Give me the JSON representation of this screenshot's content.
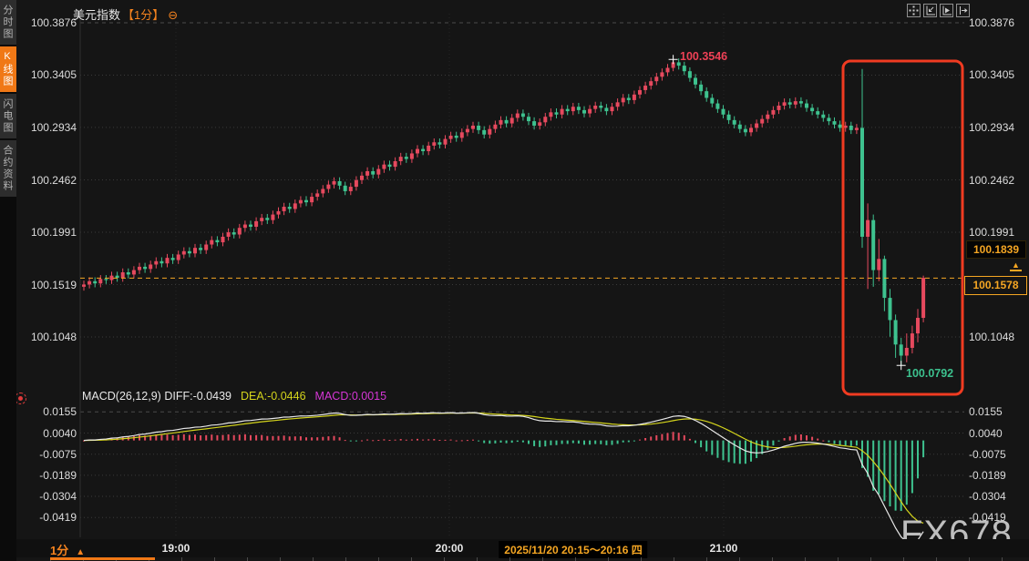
{
  "window": {
    "title": "美元指数",
    "period_tag": "【1分】",
    "collapse_icon": "circled-minus"
  },
  "sidebar": {
    "items": [
      {
        "label": "分时图",
        "active": false
      },
      {
        "label": "K线图",
        "active": true
      },
      {
        "label": "闪电图",
        "active": false
      },
      {
        "label": "合约资料",
        "active": false
      }
    ]
  },
  "toolbar": {
    "icons": [
      "crosshair",
      "zoom-axis-left",
      "zoom-axis-right",
      "pan-right"
    ]
  },
  "markers": {
    "high": "100.3546",
    "low": "100.0792",
    "ref": "100.1839",
    "last": "100.1578"
  },
  "macd_header": {
    "title": "MACD(26,12,9)",
    "diff_label": "DIFF:-0.0439",
    "dea_label": "DEA:-0.0446",
    "macd_label": "MACD:0.0015"
  },
  "time_axis": {
    "period": "1分",
    "period_arrow": "▲",
    "labels": [
      "19:00",
      "20:00",
      "21:00"
    ],
    "range_label": "2025/11/20 20:15～20:16 四"
  },
  "watermark": "FX678",
  "colors": {
    "up": "#e6495e",
    "down": "#3ec28f",
    "accent": "#f5831f",
    "price_line": "#f5a623",
    "diff_line": "#e8e8e8",
    "dea_line": "#d4d41c",
    "hist_pos": "#e6495e",
    "hist_neg": "#3ec28f",
    "highlight_rect": "#f03b21",
    "grid": "#3a3a3a",
    "axis_text": "#dcdcdc",
    "high_label": "#ef4156",
    "low_label": "#3cc18e"
  },
  "chart_data": [
    {
      "type": "candlestick",
      "title": "美元指数【1分】",
      "x_axis": {
        "visible_labels": [
          "19:00",
          "20:00",
          "21:00"
        ],
        "period": "1分"
      },
      "y_axis": {
        "ticks": [
          "100.3876",
          "100.3405",
          "100.2934",
          "100.2462",
          "100.1991",
          "100.1519",
          "100.1048"
        ],
        "top_value": 100.3876,
        "bottom_value": 100.1048
      },
      "session_high": 100.3546,
      "session_low": 100.0792,
      "last_price": 100.1578,
      "reference_price": 100.1839,
      "candles": {
        "open_first": 100.15,
        "default_wick": 0.0035,
        "closes": [
          100.152,
          100.155,
          100.153,
          100.157,
          100.156,
          100.16,
          100.158,
          100.163,
          100.161,
          100.165,
          100.168,
          100.166,
          100.17,
          100.173,
          100.171,
          100.176,
          100.174,
          100.179,
          100.182,
          100.18,
          100.185,
          100.183,
          100.188,
          100.192,
          100.19,
          100.195,
          100.199,
          100.197,
          100.203,
          100.206,
          100.204,
          100.209,
          100.212,
          100.21,
          100.215,
          100.218,
          100.222,
          100.22,
          100.225,
          100.228,
          100.226,
          100.231,
          100.234,
          100.238,
          100.242,
          100.245,
          100.241,
          100.236,
          100.24,
          100.246,
          100.25,
          100.254,
          100.251,
          100.256,
          100.26,
          100.258,
          100.263,
          100.267,
          100.265,
          100.27,
          100.274,
          100.272,
          100.277,
          100.28,
          100.278,
          100.283,
          100.286,
          100.284,
          100.289,
          100.292,
          100.295,
          100.291,
          100.287,
          100.292,
          100.296,
          100.3,
          100.297,
          100.302,
          100.306,
          100.303,
          100.299,
          100.295,
          100.298,
          100.303,
          100.307,
          100.305,
          100.31,
          100.308,
          100.312,
          100.309,
          100.306,
          100.31,
          100.313,
          100.311,
          100.308,
          100.312,
          100.316,
          100.32,
          100.318,
          100.323,
          100.327,
          100.331,
          100.335,
          100.339,
          100.343,
          100.347,
          100.352,
          100.349,
          100.344,
          100.338,
          100.332,
          100.326,
          100.32,
          100.315,
          100.31,
          100.305,
          100.3,
          100.296,
          100.292,
          100.289,
          100.293,
          100.297,
          100.301,
          100.305,
          100.309,
          100.313,
          100.316,
          100.314,
          100.317,
          100.315,
          100.311,
          100.308,
          100.305,
          100.302,
          100.299,
          100.296,
          100.293,
          100.295,
          100.291,
          100.293,
          100.195,
          100.21,
          100.165,
          100.175,
          100.14,
          100.12,
          100.098,
          100.088,
          100.095,
          100.108,
          100.122,
          100.158
        ],
        "overrides": {
          "106": [
            100.3546,
            100.344
          ],
          "140": [
            100.346,
            100.185
          ],
          "141": [
            100.225,
            100.148
          ],
          "142": [
            100.215,
            100.15
          ],
          "143": [
            100.193,
            100.155
          ],
          "144": [
            100.178,
            100.128
          ],
          "145": [
            100.148,
            100.105
          ],
          "146": [
            100.125,
            100.086
          ],
          "147": [
            100.104,
            100.0792
          ],
          "148": [
            100.108,
            100.082
          ],
          "149": [
            100.115,
            100.09
          ],
          "150": [
            100.13,
            100.1
          ],
          "151": [
            100.16,
            100.118
          ]
        }
      }
    },
    {
      "type": "macd",
      "params": {
        "slow": 26,
        "fast": 12,
        "signal": 9
      },
      "y_axis": {
        "ticks": [
          "0.0155",
          "0.0040",
          "-0.0075",
          "-0.0189",
          "-0.0304",
          "-0.0419"
        ],
        "top_value": 0.0155,
        "bottom_value": -0.0419
      },
      "latest": {
        "diff": -0.0439,
        "dea": -0.0446,
        "macd": 0.0015
      }
    }
  ]
}
